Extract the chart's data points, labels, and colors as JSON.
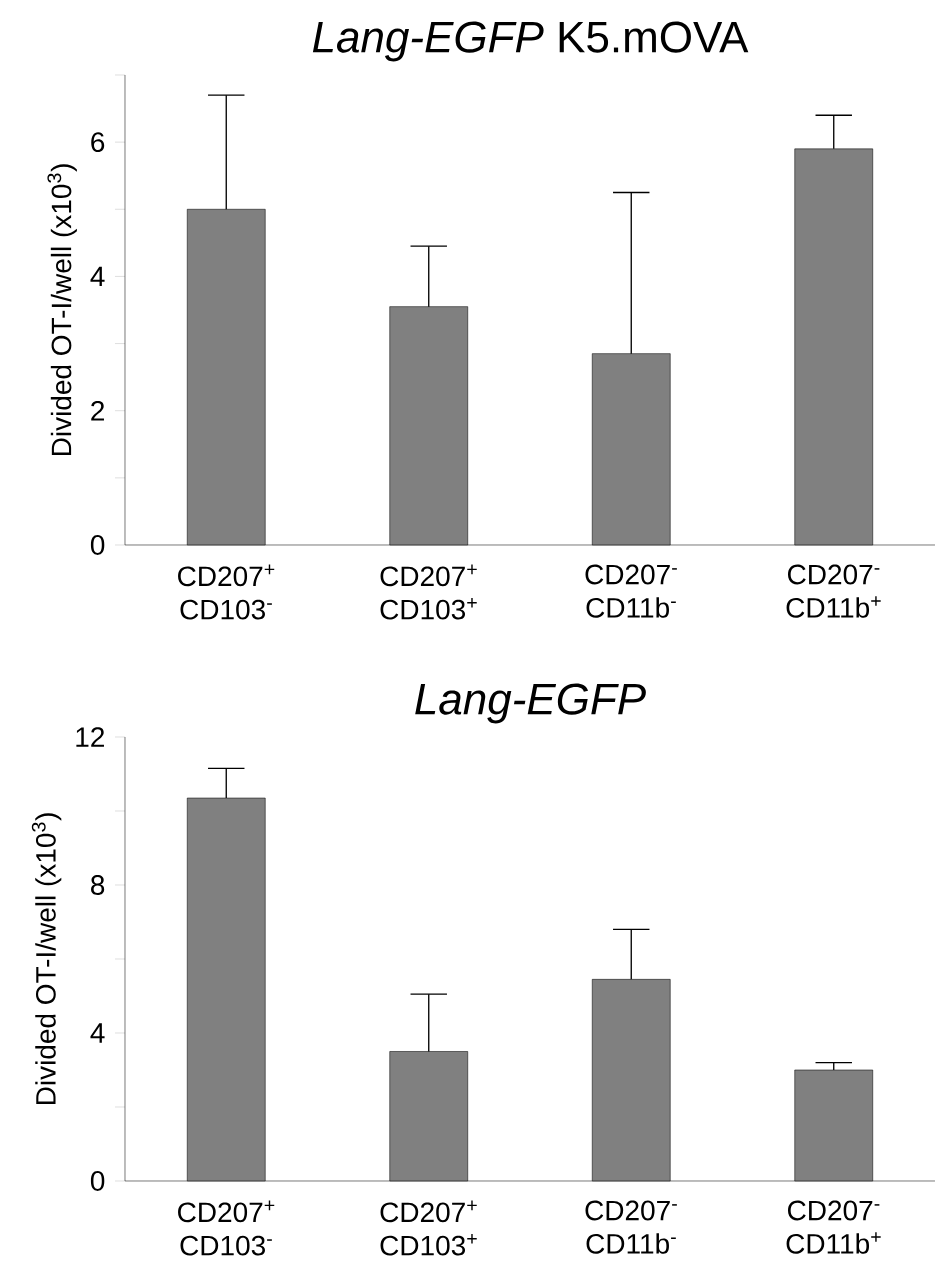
{
  "chart_data": [
    {
      "type": "bar",
      "title": "*Lang-EGFP* K5.mOVA",
      "ylabel": "Divided OT-I/well (x10$^{3}$)",
      "color": "#808080",
      "categories": [
        "CD207$^{+}$ CD103$^{-}$",
        "CD207$^{+}$ CD103$^{+}$",
        "CD207$^{-}$ CD11b$^{-}$",
        "CD207$^{-}$ CD11b$^{+}$"
      ],
      "values": [
        5.0,
        3.55,
        2.85,
        5.9
      ],
      "errors": [
        [
          5.0,
          6.7
        ],
        [
          3.55,
          4.45
        ],
        [
          2.85,
          5.25
        ],
        [
          5.9,
          6.4
        ]
      ],
      "ylim": [
        0,
        7
      ],
      "yticks": [
        0,
        {
          "value": 1,
          "label": null
        },
        2,
        {
          "value": 3,
          "label": null
        },
        4,
        {
          "value": 5,
          "label": null
        },
        6,
        {
          "value": 7,
          "label": null
        }
      ]
    },
    {
      "type": "bar",
      "title": "*Lang-EGFP*",
      "ylabel": "Divided OT-I/well (x10$^{3}$)",
      "color": "#808080",
      "categories": [
        "CD207$^{+}$ CD103$^{-}$",
        "CD207$^{+}$ CD103$^{+}$",
        "CD207$^{-}$ CD11b$^{-}$",
        "CD207$^{-}$ CD11b$^{+}$"
      ],
      "values": [
        10.35,
        3.5,
        5.45,
        3.0
      ],
      "errors": [
        [
          10.35,
          11.15
        ],
        [
          3.5,
          5.05
        ],
        [
          5.45,
          6.8
        ],
        [
          3.0,
          3.2
        ]
      ],
      "ylim": [
        0,
        12
      ],
      "yticks": [
        0,
        {
          "value": 2,
          "label": null
        },
        4,
        {
          "value": 6,
          "label": null
        },
        8,
        {
          "value": 10,
          "label": null
        },
        12
      ]
    }
  ]
}
